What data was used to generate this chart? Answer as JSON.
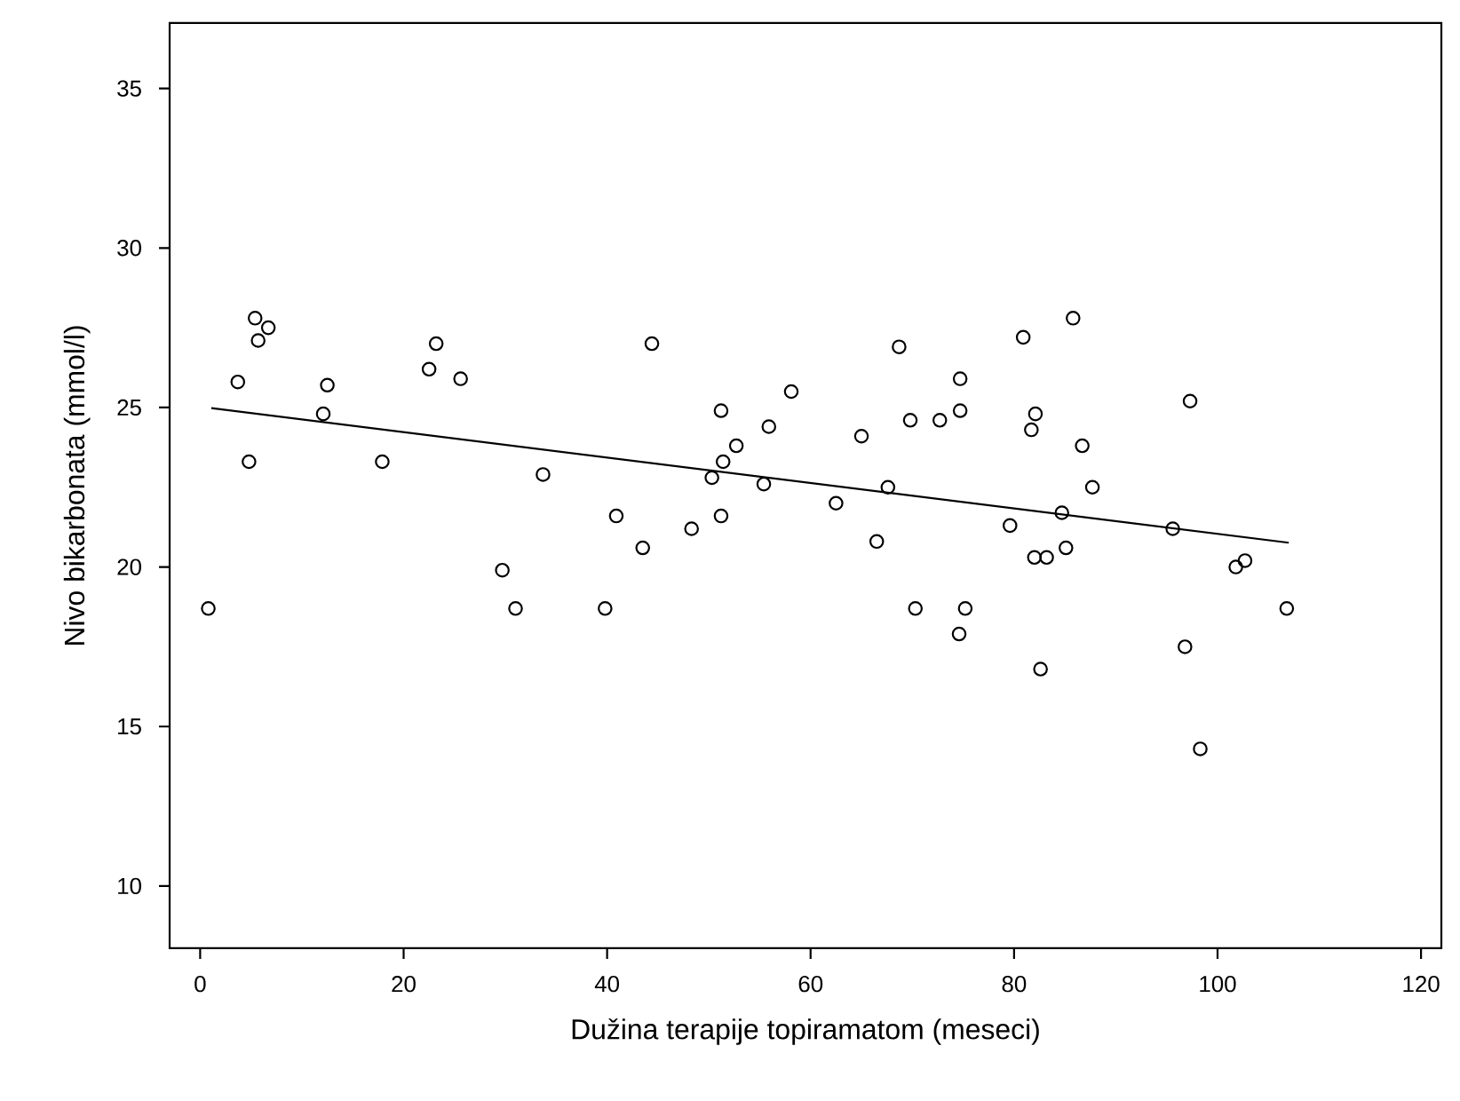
{
  "chart_data": {
    "type": "scatter",
    "xlabel": "Dužina terapije topiramatom (meseci)",
    "ylabel": "Nivo bikarbonata (mmol/l)",
    "xlim": [
      -3,
      122
    ],
    "ylim": [
      8.05,
      37.05
    ],
    "xticks": [
      0,
      20,
      40,
      60,
      80,
      100,
      120
    ],
    "yticks": [
      10,
      15,
      20,
      25,
      30,
      35
    ],
    "grid": false,
    "series": [
      {
        "type": "scatter",
        "marker": "circle",
        "color": "#000000",
        "x": [
          0.8,
          5.4,
          6.7,
          5.7,
          3.7,
          4.8,
          12.5,
          12.1,
          17.9,
          23.2,
          22.5,
          25.6,
          33.7,
          40.9,
          29.7,
          31.0,
          39.8,
          44.4,
          43.5,
          48.3,
          51.2,
          51.2,
          50.3,
          51.4,
          52.7,
          55.9,
          58.1,
          55.4,
          62.5,
          65.0,
          66.5,
          67.6,
          68.7,
          69.8,
          70.3,
          72.7,
          74.7,
          74.7,
          74.6,
          75.2,
          79.6,
          80.9,
          85.8,
          82.1,
          81.7,
          86.7,
          87.7,
          84.7,
          85.1,
          82.0,
          83.2,
          82.6,
          95.6,
          97.3,
          96.8,
          98.3,
          102.7,
          101.8,
          106.8
        ],
        "values": [
          18.7,
          27.8,
          27.5,
          27.1,
          25.8,
          23.3,
          25.7,
          24.8,
          23.3,
          27.0,
          26.2,
          25.9,
          22.9,
          21.6,
          19.9,
          18.7,
          18.7,
          27.0,
          20.6,
          21.2,
          21.6,
          24.9,
          22.8,
          23.3,
          23.8,
          24.4,
          25.5,
          22.6,
          22.0,
          24.1,
          20.8,
          22.5,
          26.9,
          24.6,
          18.7,
          24.6,
          25.9,
          24.9,
          17.9,
          18.7,
          21.3,
          27.2,
          27.8,
          24.8,
          24.3,
          23.8,
          22.5,
          21.7,
          20.6,
          20.3,
          20.3,
          16.8,
          21.2,
          25.2,
          17.5,
          14.3,
          20.2,
          20.0,
          18.7
        ]
      },
      {
        "type": "line",
        "marker": "none",
        "line_style": "solid",
        "color": "#000000",
        "x": [
          1.1,
          107.0
        ],
        "values": [
          24.98,
          20.76
        ]
      }
    ]
  }
}
